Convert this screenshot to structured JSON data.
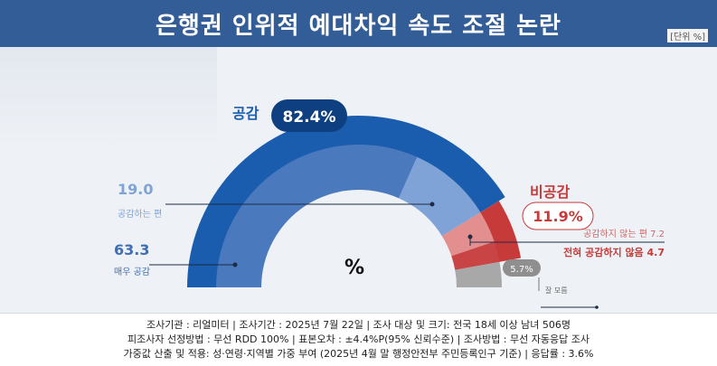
{
  "header": {
    "title": "은행권 인위적 예대차익 속도 조절 논란",
    "unit": "[단위 %]"
  },
  "chart_data": {
    "type": "pie",
    "shape": "semicircle-donut",
    "center_label": "%",
    "groups": [
      {
        "name": "공감",
        "value": 82.4,
        "color": "#1a5cad"
      },
      {
        "name": "비공감",
        "value": 11.9,
        "color": "#c73a3a"
      }
    ],
    "segments": [
      {
        "name": "매우 공감",
        "value": 63.3,
        "group": "공감",
        "color": "#4a79bd"
      },
      {
        "name": "공감하는 편",
        "value": 19.0,
        "group": "공감",
        "color": "#7fa3d6"
      },
      {
        "name": "공감하지 않는 편",
        "value": 7.2,
        "group": "비공감",
        "color": "#e38f8f"
      },
      {
        "name": "전혀 공감하지 않음",
        "value": 4.7,
        "group": "비공감",
        "color": "#c94545"
      },
      {
        "name": "잘 모름",
        "value": 5.7,
        "group": "잘 모름",
        "color": "#a8a8a8"
      }
    ],
    "labels": {
      "agree_group": "공감",
      "agree_total": "82.4%",
      "disagree_group": "비공감",
      "disagree_total": "11.9%",
      "somewhat_agree_value": "19.0",
      "somewhat_agree_name": "공감하는 편",
      "strongly_agree_value": "63.3",
      "strongly_agree_name": "매우 공감",
      "somewhat_disagree": "공감하지 않는 편 7.2",
      "strongly_disagree": "전혀 공감하지 않음 4.7",
      "dont_know_value": "5.7%",
      "dont_know_name": "잘 모름"
    }
  },
  "footer": {
    "line1": "조사기관 : 리얼미터  |  조사기간 : 2025년 7월 22일 | 조사 대상 및 크기: 전국 18세 이상 남녀 506명",
    "line2": "피조사자 선정방법 : 무선 RDD 100% | 표본오차 : ±4.4%P(95% 신뢰수준) | 조사방법 : 무선 자동응답 조사",
    "line3": "가중값 산출 및 적용: 성·연령·지역별 가중 부여 (2025년 4월 말 행정안전부 주민등록인구 기준) | 응답률 : 3.6%"
  }
}
